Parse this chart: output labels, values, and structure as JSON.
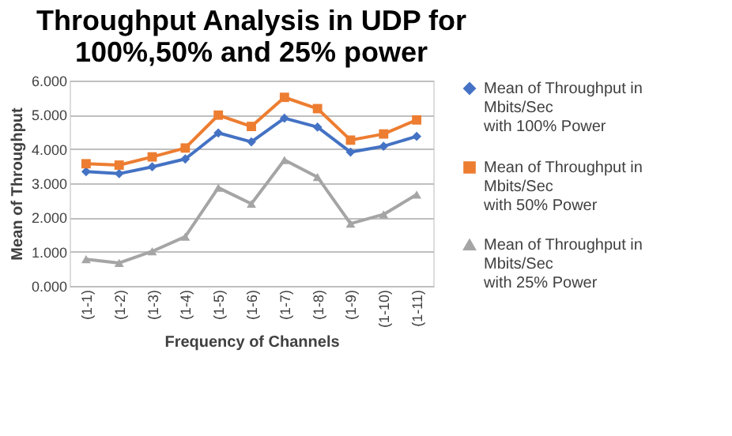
{
  "chart_data": {
    "type": "line",
    "title": "Throughput Analysis in UDP for\n100%,50% and 25% power",
    "xlabel": "Frequency of Channels",
    "ylabel": "Mean of Throughput",
    "categories": [
      "(1-1)",
      "(1-2)",
      "(1-3)",
      "(1-4)",
      "(1-5)",
      "(1-6)",
      "(1-7)",
      "(1-8)",
      "(1-9)",
      "(1-10)",
      "(1-11)"
    ],
    "series": [
      {
        "name": "Mean of Throughput in\nMbits/Sec\nwith 100% Power",
        "color": "#4472c4",
        "marker": "diamond",
        "values": [
          3.34,
          3.28,
          3.48,
          3.71,
          4.47,
          4.21,
          4.9,
          4.64,
          3.91,
          4.08,
          4.37
        ]
      },
      {
        "name": "Mean of Throughput in\nMbits/Sec\nwith 50% Power",
        "color": "#ed7d31",
        "marker": "square",
        "values": [
          3.57,
          3.53,
          3.77,
          4.03,
          4.99,
          4.66,
          5.51,
          5.18,
          4.26,
          4.44,
          4.85
        ]
      },
      {
        "name": "Mean of Throughput in\nMbits/Sec\nwith 25% Power",
        "color": "#a5a5a5",
        "marker": "triangle",
        "values": [
          0.78,
          0.67,
          1.01,
          1.44,
          2.87,
          2.4,
          3.68,
          3.18,
          1.82,
          2.09,
          2.67
        ]
      }
    ],
    "ylim": [
      0,
      6
    ],
    "yticks": [
      {
        "value": 0,
        "label": "0.000"
      },
      {
        "value": 1,
        "label": "1.000"
      },
      {
        "value": 2,
        "label": "2.000"
      },
      {
        "value": 3,
        "label": "3.000"
      },
      {
        "value": 4,
        "label": "4.000"
      },
      {
        "value": 5,
        "label": "5.000"
      },
      {
        "value": 6,
        "label": "6.000"
      }
    ],
    "grid": "y",
    "legend": "right"
  }
}
